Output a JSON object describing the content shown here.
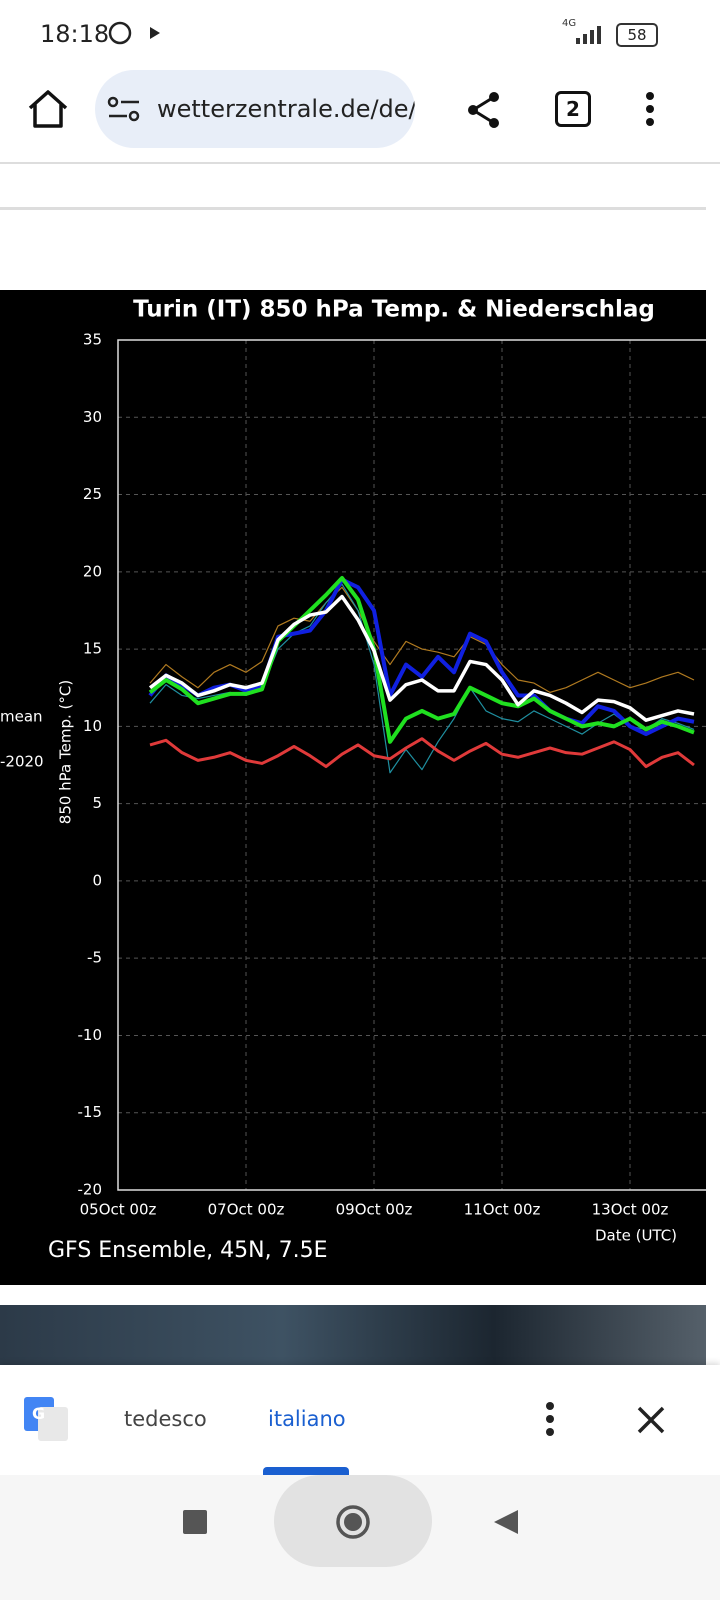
{
  "status_bar": {
    "time": "18:18",
    "network": "4G",
    "battery": "58"
  },
  "browser": {
    "url": "wetterzentrale.de/de/",
    "tabs": "2"
  },
  "chart_data": {
    "type": "line",
    "title": "Turin  (IT)  850 hPa Temp. & Niederschlag",
    "xlabel": "Date (UTC)",
    "ylabel": "850 hPa Temp. (°C)",
    "footer": "GFS Ensemble, 45N, 7.5E",
    "annotations": [
      "mean",
      "-2020"
    ],
    "x": [
      12,
      18,
      24,
      30,
      36,
      42,
      48,
      54,
      60,
      66,
      72,
      78,
      84,
      90,
      96,
      102,
      108,
      114,
      120,
      126,
      132,
      138,
      144,
      150,
      156,
      162,
      168,
      174,
      180,
      186,
      192,
      198,
      204,
      210,
      216
    ],
    "xlim": [
      0,
      220.5
    ],
    "xticks": [
      {
        "value": 0,
        "label": "05Oct 00z"
      },
      {
        "value": 48,
        "label": "07Oct 00z"
      },
      {
        "value": 96,
        "label": "09Oct 00z"
      },
      {
        "value": 144,
        "label": "11Oct 00z"
      },
      {
        "value": 192,
        "label": "13Oct 00z"
      }
    ],
    "ylim": [
      -20,
      35
    ],
    "yticks": [
      35,
      30,
      25,
      20,
      15,
      10,
      5,
      0,
      -5,
      -10,
      -15,
      -20
    ],
    "grid": true,
    "series": [
      {
        "color": "#b07a20",
        "width": 1.2,
        "values": [
          12.8,
          14.0,
          13.2,
          12.5,
          13.5,
          14.0,
          13.5,
          14.2,
          16.5,
          17.0,
          16.8,
          18.0,
          19.0,
          17.5,
          15.5,
          14.0,
          15.5,
          15.0,
          14.8,
          14.5,
          15.8,
          15.3,
          14.0,
          13.0,
          12.8,
          12.2,
          12.5,
          13.0,
          13.5,
          13.0,
          12.5,
          12.8,
          13.2,
          13.5,
          13.0
        ]
      },
      {
        "color": "#1f8fa0",
        "width": 1.2,
        "values": [
          11.5,
          12.7,
          12.0,
          11.8,
          12.0,
          12.2,
          12.0,
          12.5,
          15.0,
          16.0,
          16.5,
          18.0,
          19.2,
          17.5,
          14.0,
          7.0,
          8.5,
          7.2,
          9.0,
          10.5,
          12.5,
          11.0,
          10.5,
          10.3,
          11.0,
          10.5,
          10.0,
          9.5,
          10.2,
          10.8,
          10.0,
          9.8,
          10.5,
          10.2,
          9.8
        ]
      },
      {
        "color": "#e03a3a",
        "width": 3,
        "values": [
          8.8,
          9.1,
          8.3,
          7.8,
          8.0,
          8.3,
          7.8,
          7.6,
          8.1,
          8.7,
          8.1,
          7.4,
          8.2,
          8.8,
          8.1,
          7.9,
          8.6,
          9.2,
          8.4,
          7.8,
          8.4,
          8.9,
          8.2,
          8.0,
          8.3,
          8.6,
          8.3,
          8.2,
          8.6,
          9.0,
          8.5,
          7.4,
          8.0,
          8.3,
          7.5
        ]
      },
      {
        "color": "#1020e0",
        "width": 4,
        "values": [
          12.0,
          13.3,
          12.7,
          12.0,
          12.5,
          12.7,
          12.3,
          12.6,
          15.8,
          16.0,
          16.2,
          17.5,
          19.5,
          19.0,
          17.5,
          12.0,
          14.0,
          13.2,
          14.5,
          13.5,
          16.0,
          15.5,
          13.5,
          12.0,
          12.0,
          11.0,
          10.5,
          10.2,
          11.3,
          11.0,
          10.0,
          9.5,
          10.0,
          10.5,
          10.3
        ]
      },
      {
        "color": "#20e020",
        "width": 4,
        "values": [
          12.2,
          13.0,
          12.4,
          11.5,
          11.8,
          12.1,
          12.1,
          12.4,
          15.5,
          16.5,
          17.5,
          18.5,
          19.6,
          18.2,
          15.0,
          9.0,
          10.5,
          11.0,
          10.5,
          10.8,
          12.5,
          12.0,
          11.5,
          11.3,
          11.8,
          11.0,
          10.5,
          10.0,
          10.2,
          10.0,
          10.5,
          9.8,
          10.3,
          10.0,
          9.6
        ]
      },
      {
        "color": "#ffffff",
        "width": 3.5,
        "values": [
          12.5,
          13.3,
          12.8,
          12.0,
          12.3,
          12.7,
          12.5,
          12.8,
          15.6,
          16.6,
          17.2,
          17.4,
          18.4,
          16.9,
          14.9,
          11.7,
          12.7,
          13.0,
          12.3,
          12.3,
          14.2,
          14.0,
          13.0,
          11.4,
          12.3,
          12.0,
          11.5,
          10.9,
          11.7,
          11.6,
          11.2,
          10.4,
          10.7,
          11.0,
          10.8
        ]
      }
    ]
  },
  "translate_bar": {
    "source": "tedesco",
    "target": "italiano"
  }
}
